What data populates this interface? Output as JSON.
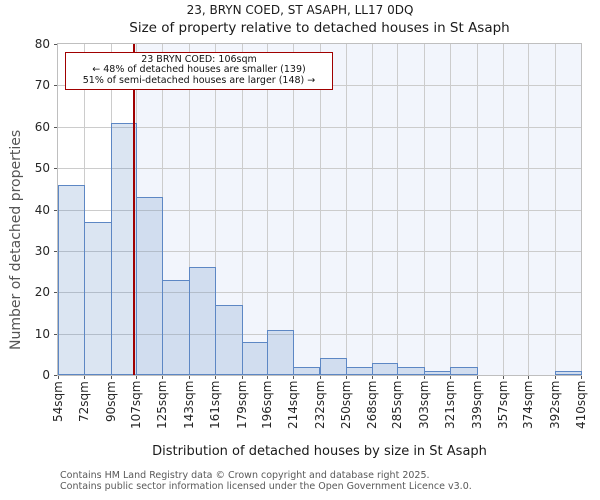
{
  "window": {
    "title_line1": "23, BRYN COED, ST ASAPH, LL17 0DQ",
    "title_line2": "Size of property relative to detached houses in St Asaph"
  },
  "annotation": {
    "line1": "23 BRYN COED: 106sqm",
    "line2": "← 48% of detached houses are smaller (139)",
    "line3": "51% of semi-detached houses are larger (148) →"
  },
  "footer": {
    "line1": "Contains HM Land Registry data © Crown copyright and database right 2025.",
    "line2": "Contains public sector information licensed under the Open Government Licence v3.0."
  },
  "chart_data": {
    "type": "bar",
    "title": "23, BRYN COED, ST ASAPH, LL17 0DQ",
    "subtitle": "Size of property relative to detached houses in St Asaph",
    "xlabel": "Distribution of detached houses by size in St Asaph",
    "ylabel": "Number of detached properties",
    "ylim": [
      0,
      80
    ],
    "ytick_step": 10,
    "grid": true,
    "legend": "none",
    "bin_edges_sqm": [
      54,
      72,
      90,
      107,
      125,
      143,
      161,
      179,
      196,
      214,
      232,
      250,
      268,
      285,
      303,
      321,
      339,
      357,
      374,
      392,
      410
    ],
    "categories": [
      "54sqm",
      "72sqm",
      "90sqm",
      "107sqm",
      "125sqm",
      "143sqm",
      "161sqm",
      "179sqm",
      "196sqm",
      "214sqm",
      "232sqm",
      "250sqm",
      "268sqm",
      "285sqm",
      "303sqm",
      "321sqm",
      "339sqm",
      "357sqm",
      "374sqm",
      "392sqm",
      "410sqm"
    ],
    "values": [
      46,
      37,
      61,
      43,
      23,
      26,
      17,
      8,
      11,
      2,
      4,
      2,
      3,
      2,
      1,
      2,
      0,
      0,
      0,
      1
    ],
    "marker_value_sqm": 106,
    "colors": {
      "bar_fill": "rgba(93,135,196,0.22)",
      "bar_edge": "#5d87c4",
      "marker_line": "#a00000",
      "annotation_border": "#a00000",
      "shade_right_of_marker": "#f2f5fc",
      "gridline": "#cccccc",
      "spine": "#bfbfbf"
    }
  }
}
